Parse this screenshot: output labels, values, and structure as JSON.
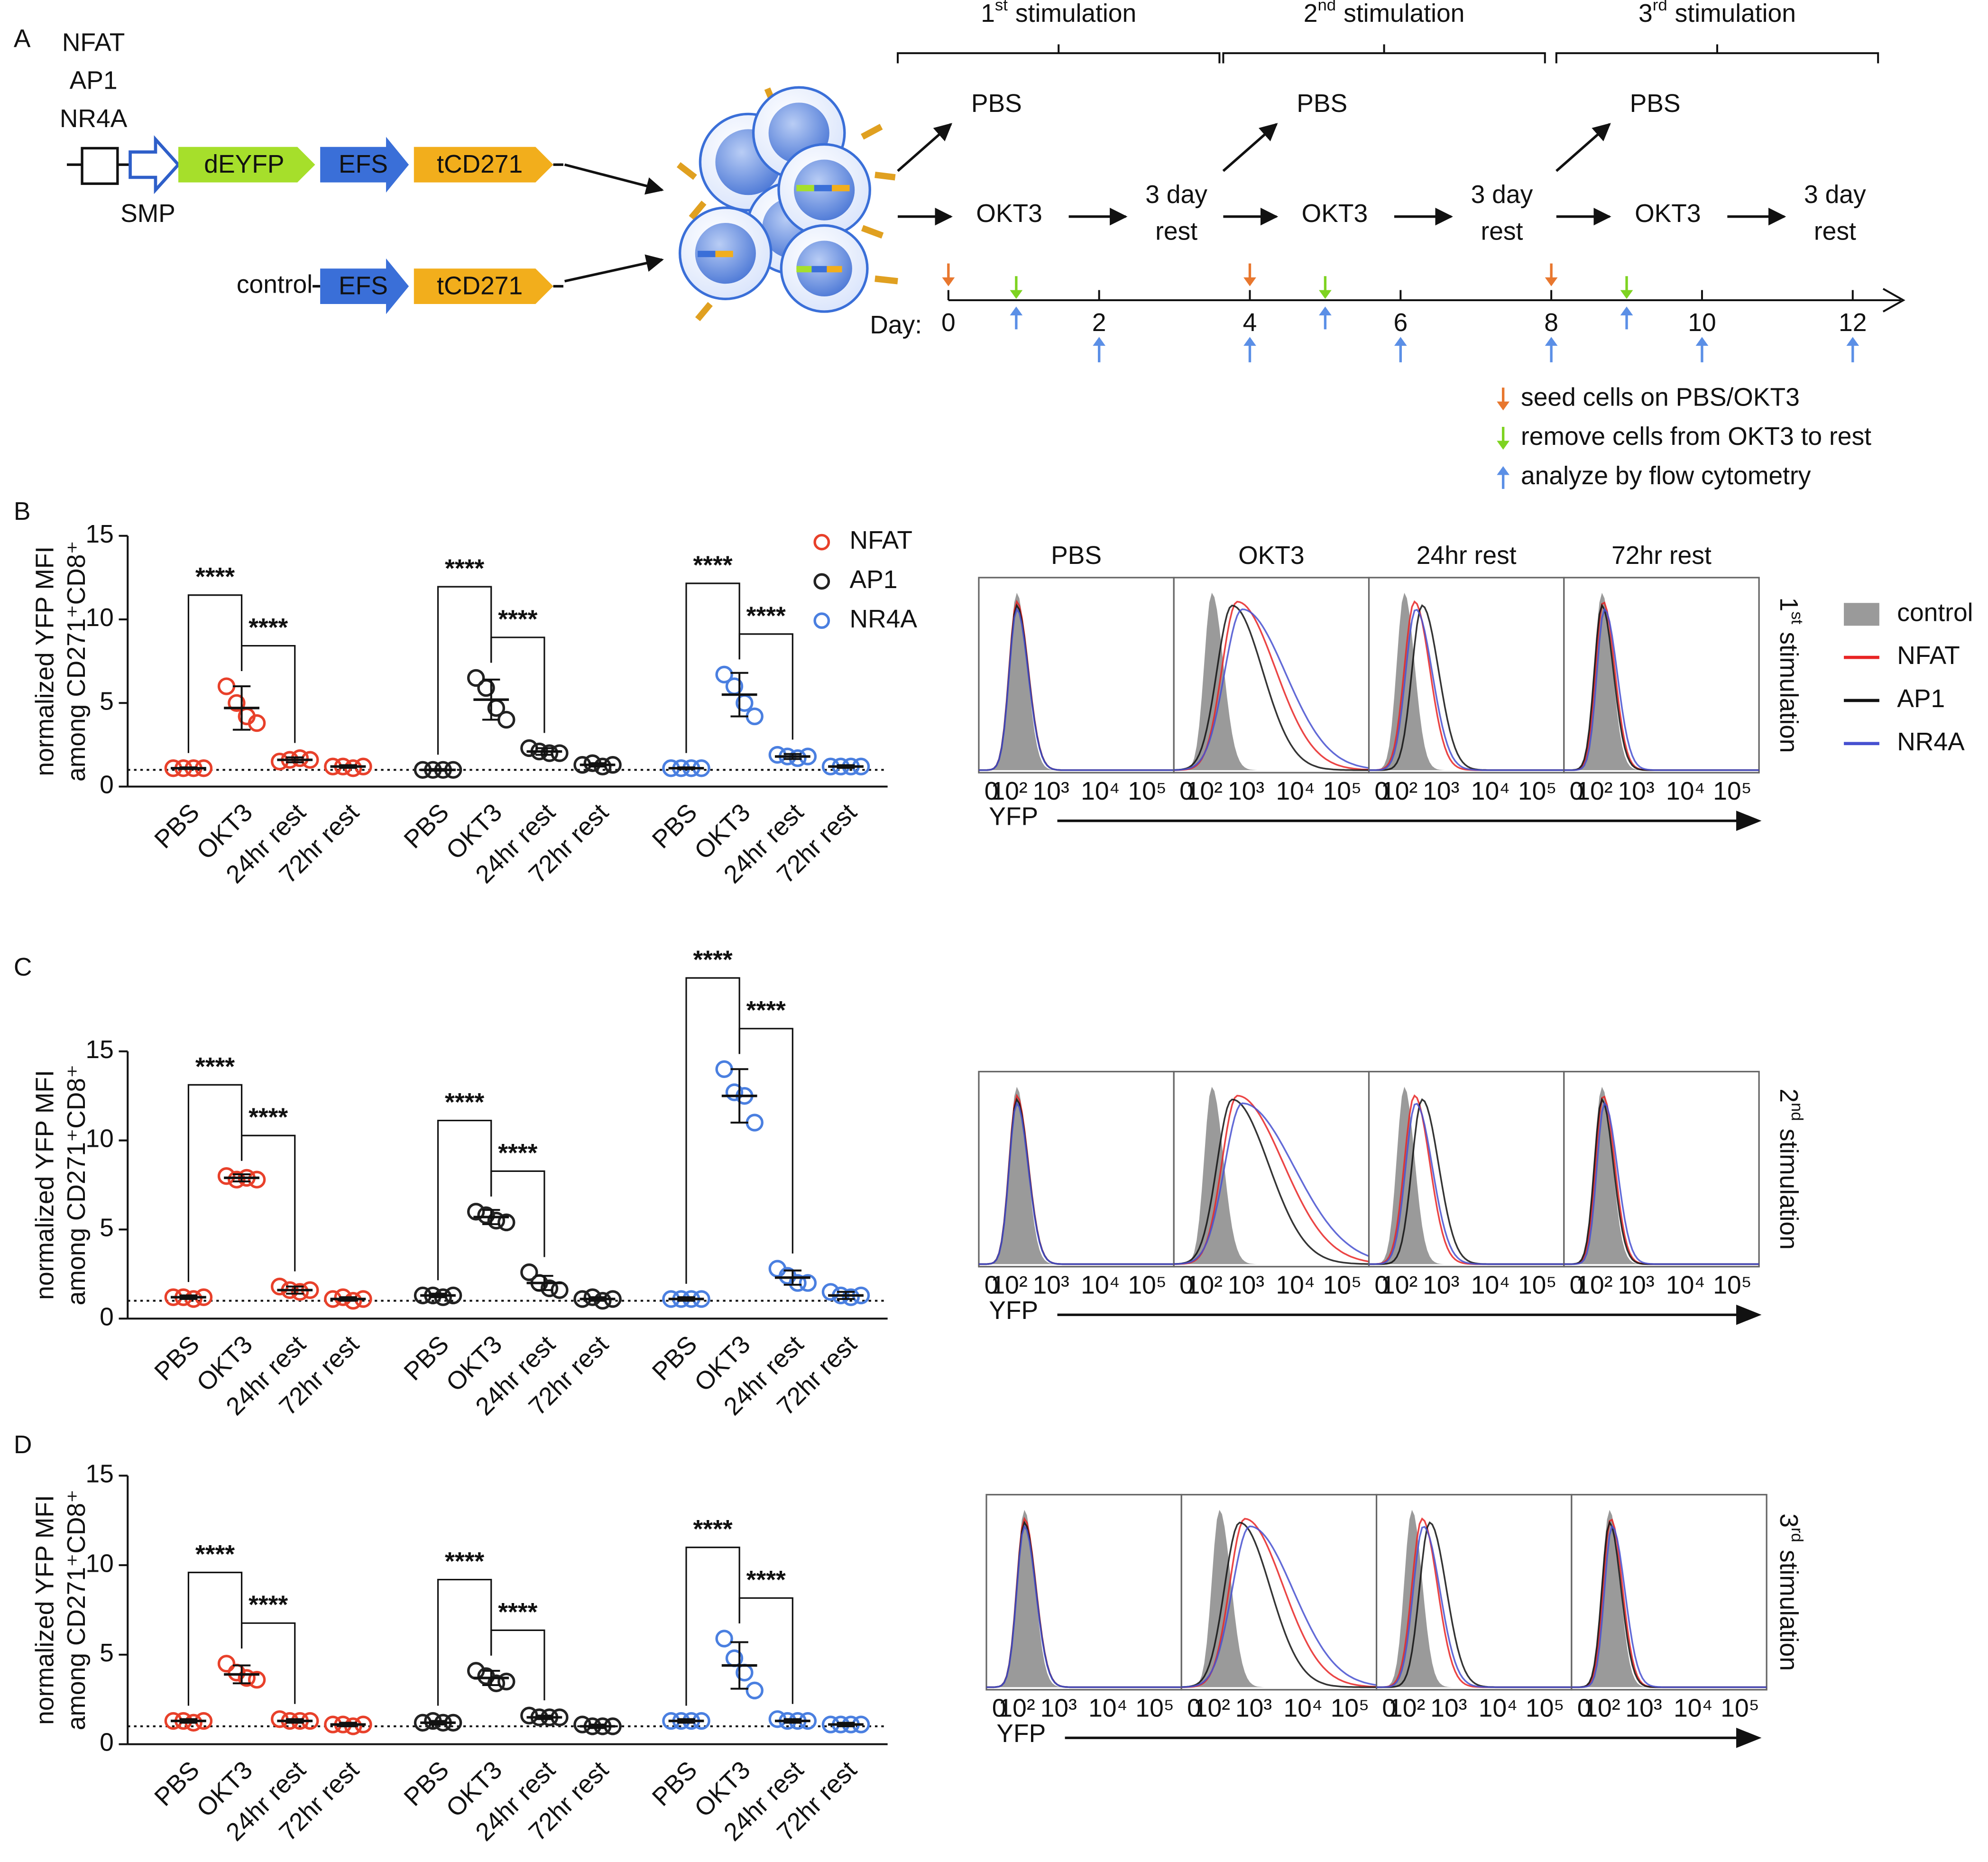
{
  "panel_labels": [
    "A",
    "B",
    "C",
    "D"
  ],
  "diagram": {
    "reporter_elements": [
      "NFAT",
      "AP1",
      "NR4A"
    ],
    "promoter": "SMP",
    "construct": [
      "dEYFP",
      "EFS",
      "tCD271"
    ],
    "control_label": "control",
    "control_construct": [
      "EFS",
      "tCD271"
    ],
    "stimulations": [
      {
        "n": "1",
        "sup": "st",
        "word": "stimulation"
      },
      {
        "n": "2",
        "sup": "nd",
        "word": "stimulation"
      },
      {
        "n": "3",
        "sup": "rd",
        "word": "stimulation"
      }
    ],
    "branch_pbs": "PBS",
    "branch_okt3": "OKT3",
    "rest": [
      "3 day",
      "rest"
    ],
    "timeline": {
      "label": "Day:",
      "xlim": [
        0,
        12
      ],
      "xticks": [
        0,
        2,
        4,
        6,
        8,
        10,
        12
      ],
      "seed": [
        0,
        4,
        8
      ],
      "remove": [
        0.9,
        5,
        9
      ],
      "analyze": [
        0.9,
        2,
        4,
        5,
        6,
        8,
        9,
        10,
        12
      ],
      "legend": [
        {
          "label": "seed cells on PBS/OKT3",
          "color": "#e8772e"
        },
        {
          "label": "remove cells from OKT3 to rest",
          "color": "#7ed321"
        },
        {
          "label": "analyze by flow cytometry",
          "color": "#5b8fe6"
        }
      ]
    }
  },
  "histograms": {
    "columns": [
      "PBS",
      "OKT3",
      "24hr rest",
      "72hr rest"
    ],
    "x_label": "YFP",
    "x_tick_labels": [
      "0",
      "10²",
      "10³",
      "10⁴",
      "10⁵"
    ],
    "legend": [
      {
        "label": "control",
        "color": "#9a9a9a"
      },
      {
        "label": "NFAT",
        "color": "#e82424"
      },
      {
        "label": "AP1",
        "color": "#111111"
      },
      {
        "label": "NR4A",
        "color": "#4650d0"
      }
    ]
  },
  "chart_data": [
    {
      "type": "dotplot",
      "y_label": [
        "normalized YFP MFI",
        "among CD271⁺CD8⁺"
      ],
      "ylim": [
        0,
        15
      ],
      "yticks": [
        0,
        5,
        10,
        15
      ],
      "reference_line": 1,
      "significance": "****",
      "legend": "upper right",
      "categories": [
        "PBS",
        "OKT3",
        "24hr rest",
        "72hr rest"
      ],
      "series": [
        {
          "name": "NFAT",
          "color": "#e8402a",
          "values": [
            1.1,
            4.7,
            1.6,
            1.2
          ],
          "errors": [
            0.05,
            1.3,
            0.15,
            0.08
          ],
          "points": [
            [
              1.1,
              1.1,
              1.1,
              1.1
            ],
            [
              6.0,
              5.0,
              4.2,
              3.8
            ],
            [
              1.5,
              1.6,
              1.7,
              1.6
            ],
            [
              1.2,
              1.2,
              1.1,
              1.2
            ]
          ]
        },
        {
          "name": "AP1",
          "color": "#222222",
          "values": [
            1.0,
            5.2,
            2.1,
            1.3
          ],
          "errors": [
            0.05,
            1.2,
            0.2,
            0.1
          ],
          "points": [
            [
              1.0,
              1.0,
              1.0,
              1.0
            ],
            [
              6.5,
              5.9,
              4.7,
              4.0
            ],
            [
              2.3,
              2.1,
              2.0,
              2.0
            ],
            [
              1.3,
              1.4,
              1.2,
              1.3
            ]
          ]
        },
        {
          "name": "NR4A",
          "color": "#4a7fe0",
          "values": [
            1.1,
            5.5,
            1.8,
            1.2
          ],
          "errors": [
            0.05,
            1.3,
            0.15,
            0.08
          ],
          "points": [
            [
              1.1,
              1.1,
              1.1,
              1.1
            ],
            [
              6.7,
              6.0,
              5.0,
              4.2
            ],
            [
              1.9,
              1.8,
              1.7,
              1.8
            ],
            [
              1.2,
              1.2,
              1.2,
              1.2
            ]
          ]
        }
      ]
    },
    {
      "type": "dotplot",
      "y_label": [
        "normalized YFP MFI",
        "among CD271⁺CD8⁺"
      ],
      "ylim": [
        0,
        15
      ],
      "yticks": [
        0,
        5,
        10,
        15
      ],
      "reference_line": 1,
      "significance": "****",
      "categories": [
        "PBS",
        "OKT3",
        "24hr rest",
        "72hr rest"
      ],
      "series": [
        {
          "color": "#e8402a",
          "values": [
            1.2,
            7.9,
            1.6,
            1.1
          ],
          "errors": [
            0.1,
            0.2,
            0.2,
            0.1
          ],
          "points": [
            [
              1.2,
              1.2,
              1.1,
              1.2
            ],
            [
              8.0,
              7.8,
              7.9,
              7.8
            ],
            [
              1.8,
              1.6,
              1.5,
              1.6
            ],
            [
              1.1,
              1.2,
              1.0,
              1.1
            ]
          ]
        },
        {
          "color": "#222222",
          "values": [
            1.3,
            5.7,
            2.0,
            1.1
          ],
          "errors": [
            0.1,
            0.4,
            0.4,
            0.1
          ],
          "points": [
            [
              1.3,
              1.3,
              1.2,
              1.3
            ],
            [
              6.0,
              5.8,
              5.5,
              5.4
            ],
            [
              2.6,
              2.0,
              1.7,
              1.6
            ],
            [
              1.1,
              1.2,
              1.0,
              1.1
            ]
          ]
        },
        {
          "color": "#4a7fe0",
          "values": [
            1.1,
            12.5,
            2.3,
            1.3
          ],
          "errors": [
            0.1,
            1.5,
            0.4,
            0.2
          ],
          "points": [
            [
              1.1,
              1.1,
              1.1,
              1.1
            ],
            [
              14.0,
              12.7,
              12.5,
              11.0
            ],
            [
              2.8,
              2.4,
              2.0,
              2.0
            ],
            [
              1.5,
              1.3,
              1.2,
              1.3
            ]
          ]
        }
      ]
    },
    {
      "type": "dotplot",
      "y_label": [
        "normalized YFP MFI",
        "among CD271⁺CD8⁺"
      ],
      "ylim": [
        0,
        15
      ],
      "yticks": [
        0,
        5,
        10,
        15
      ],
      "reference_line": 1,
      "significance": "****",
      "categories": [
        "PBS",
        "OKT3",
        "24hr rest",
        "72hr rest"
      ],
      "series": [
        {
          "color": "#e8402a",
          "values": [
            1.3,
            3.9,
            1.3,
            1.1
          ],
          "errors": [
            0.1,
            0.5,
            0.1,
            0.1
          ],
          "points": [
            [
              1.3,
              1.3,
              1.2,
              1.3
            ],
            [
              4.5,
              4.0,
              3.7,
              3.6
            ],
            [
              1.4,
              1.3,
              1.3,
              1.3
            ],
            [
              1.1,
              1.1,
              1.0,
              1.1
            ]
          ]
        },
        {
          "color": "#222222",
          "values": [
            1.2,
            3.7,
            1.5,
            1.0
          ],
          "errors": [
            0.1,
            0.4,
            0.1,
            0.1
          ],
          "points": [
            [
              1.2,
              1.3,
              1.2,
              1.2
            ],
            [
              4.1,
              3.8,
              3.4,
              3.5
            ],
            [
              1.6,
              1.5,
              1.5,
              1.5
            ],
            [
              1.1,
              1.0,
              1.0,
              1.0
            ]
          ]
        },
        {
          "color": "#4a7fe0",
          "values": [
            1.3,
            4.4,
            1.3,
            1.1
          ],
          "errors": [
            0.1,
            1.3,
            0.1,
            0.1
          ],
          "points": [
            [
              1.3,
              1.3,
              1.3,
              1.3
            ],
            [
              5.9,
              4.8,
              4.0,
              3.0
            ],
            [
              1.4,
              1.3,
              1.3,
              1.3
            ],
            [
              1.1,
              1.1,
              1.1,
              1.1
            ]
          ]
        }
      ]
    }
  ]
}
